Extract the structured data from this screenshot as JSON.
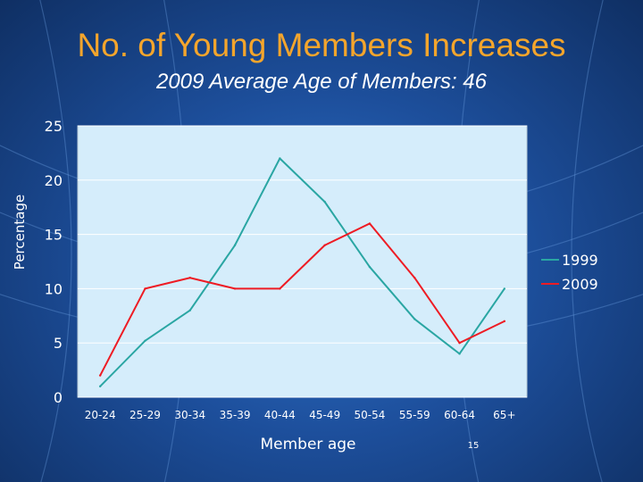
{
  "slide": {
    "title": "No. of Young Members Increases",
    "subtitle": "2009 Average Age of Members: 46",
    "slide_number": "15"
  },
  "colors": {
    "title": "#f4a52c",
    "plot_bg": "#d5edfb",
    "series_1999": "#2aa6a3",
    "series_2009": "#ee1c24"
  },
  "chart_data": {
    "type": "line",
    "title": "",
    "xlabel": "Member age",
    "ylabel": "Percentage",
    "categories": [
      "20-24",
      "25-29",
      "30-34",
      "35-39",
      "40-44",
      "45-49",
      "50-54",
      "55-59",
      "60-64",
      "65+"
    ],
    "ylim": [
      0,
      25
    ],
    "yticks": [
      0,
      5,
      10,
      15,
      20,
      25
    ],
    "grid": true,
    "legend": "right",
    "series": [
      {
        "name": "1999",
        "color": "#2aa6a3",
        "values": [
          1,
          5.2,
          8,
          14,
          22,
          18,
          12,
          7.2,
          4,
          10
        ]
      },
      {
        "name": "2009",
        "color": "#ee1c24",
        "values": [
          2,
          10,
          11,
          10,
          10,
          14,
          16,
          11,
          5,
          7
        ]
      }
    ]
  }
}
